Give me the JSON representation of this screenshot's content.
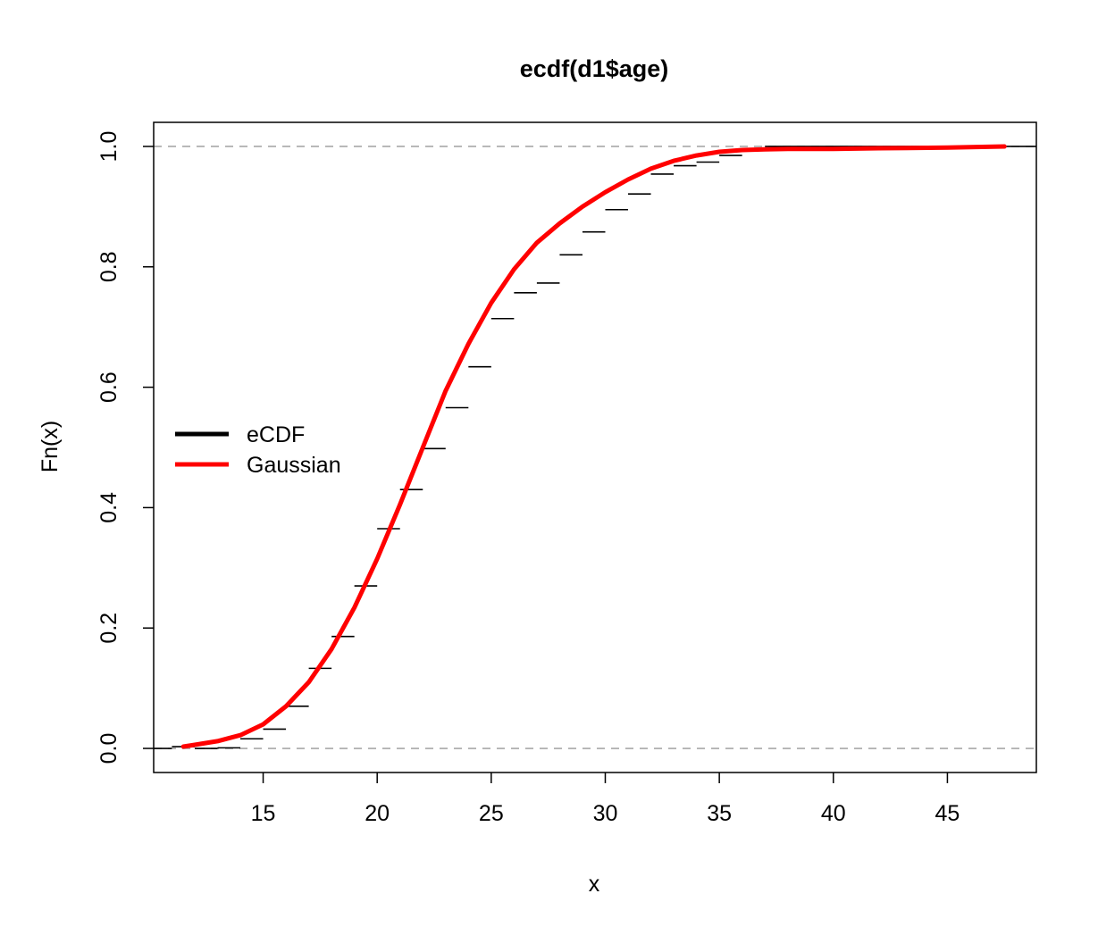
{
  "chart_data": {
    "type": "line",
    "title": "ecdf(d1$age)",
    "xlabel": "x",
    "ylabel": "Fn(x)",
    "xlim": [
      10.2,
      48.9
    ],
    "ylim": [
      -0.04,
      1.04
    ],
    "x_ticks": [
      15,
      20,
      25,
      30,
      35,
      40,
      45
    ],
    "y_ticks": [
      0.0,
      0.2,
      0.4,
      0.6,
      0.8,
      1.0
    ],
    "x_tick_labels": [
      "15",
      "20",
      "25",
      "30",
      "35",
      "40",
      "45"
    ],
    "y_tick_labels": [
      "0.0",
      "0.2",
      "0.4",
      "0.6",
      "0.8",
      "1.0"
    ],
    "reference_lines_y": [
      0,
      1
    ],
    "grid": false,
    "legend_position": "left",
    "series": [
      {
        "name": "eCDF",
        "kind": "step",
        "color": "#000000",
        "steps": [
          {
            "x0": 10.2,
            "x1": 11.0,
            "y": 0.0
          },
          {
            "x0": 11.0,
            "x1": 12.0,
            "y": 0.003
          },
          {
            "x0": 12.0,
            "x1": 13.0,
            "y": 0.0
          },
          {
            "x0": 13.0,
            "x1": 14.0,
            "y": 0.001
          },
          {
            "x0": 14.0,
            "x1": 15.0,
            "y": 0.016
          },
          {
            "x0": 15.0,
            "x1": 16.0,
            "y": 0.032
          },
          {
            "x0": 16.0,
            "x1": 17.0,
            "y": 0.07
          },
          {
            "x0": 17.0,
            "x1": 18.0,
            "y": 0.133
          },
          {
            "x0": 18.0,
            "x1": 19.0,
            "y": 0.186
          },
          {
            "x0": 19.0,
            "x1": 20.0,
            "y": 0.27
          },
          {
            "x0": 20.0,
            "x1": 21.0,
            "y": 0.365
          },
          {
            "x0": 21.0,
            "x1": 22.0,
            "y": 0.43
          },
          {
            "x0": 22.0,
            "x1": 23.0,
            "y": 0.498
          },
          {
            "x0": 23.0,
            "x1": 24.0,
            "y": 0.566
          },
          {
            "x0": 24.0,
            "x1": 25.0,
            "y": 0.634
          },
          {
            "x0": 25.0,
            "x1": 26.0,
            "y": 0.714
          },
          {
            "x0": 26.0,
            "x1": 27.0,
            "y": 0.757
          },
          {
            "x0": 27.0,
            "x1": 28.0,
            "y": 0.773
          },
          {
            "x0": 28.0,
            "x1": 29.0,
            "y": 0.82
          },
          {
            "x0": 29.0,
            "x1": 30.0,
            "y": 0.858
          },
          {
            "x0": 30.0,
            "x1": 31.0,
            "y": 0.895
          },
          {
            "x0": 31.0,
            "x1": 32.0,
            "y": 0.921
          },
          {
            "x0": 32.0,
            "x1": 33.0,
            "y": 0.954
          },
          {
            "x0": 33.0,
            "x1": 34.0,
            "y": 0.968
          },
          {
            "x0": 34.0,
            "x1": 35.0,
            "y": 0.974
          },
          {
            "x0": 35.0,
            "x1": 36.0,
            "y": 0.985
          },
          {
            "x0": 36.0,
            "x1": 37.0,
            "y": 0.995
          },
          {
            "x0": 37.0,
            "x1": 48.9,
            "y": 1.0
          }
        ]
      },
      {
        "name": "Gaussian",
        "kind": "line",
        "color": "#ff0000",
        "x": [
          11.5,
          12,
          13,
          14,
          15,
          16,
          17,
          18,
          19,
          20,
          21,
          22,
          23,
          24,
          25,
          26,
          27,
          28,
          29,
          30,
          31,
          32,
          33,
          34,
          35,
          36,
          37,
          38,
          39,
          40,
          42,
          45,
          47.5
        ],
        "y": [
          0.003,
          0.006,
          0.012,
          0.022,
          0.04,
          0.07,
          0.11,
          0.165,
          0.234,
          0.315,
          0.405,
          0.5,
          0.594,
          0.672,
          0.74,
          0.796,
          0.84,
          0.872,
          0.9,
          0.924,
          0.945,
          0.963,
          0.976,
          0.985,
          0.991,
          0.994,
          0.995,
          0.996,
          0.996,
          0.996,
          0.997,
          0.998,
          1.0
        ]
      }
    ]
  }
}
